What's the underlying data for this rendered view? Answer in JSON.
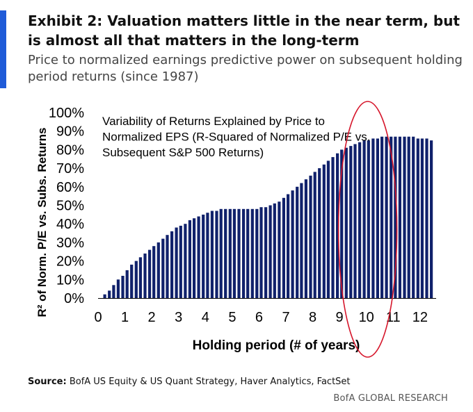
{
  "exhibit": {
    "title": "Exhibit 2: Valuation matters little in the near term, but is almost all that matters in the long-term",
    "subtitle": "Price to normalized earnings predictive power on subsequent holding period returns (since 1987)"
  },
  "source": {
    "label": "Source:",
    "text": " BofA US Equity & US Quant Strategy, Haver Analytics, FactSet"
  },
  "footer": "BofA GLOBAL RESEARCH",
  "colors": {
    "bar": "#10216b",
    "ellipse": "#d6162b",
    "accent": "#1f5bd8"
  },
  "chart_data": {
    "type": "bar",
    "title": "Variability of Returns Explained by Price to Normalized EPS (R-Squared of Normalized P/E vs. Subsequent S&P 500 Returns)",
    "title_lines": [
      "Variability of Returns Explained by Price to",
      "Normalized EPS (R-Squared of Normalized P/E vs.",
      "Subsequent S&P 500 Returns)"
    ],
    "xlabel": "Holding period (# of years)",
    "ylabel": "R² of Norm. P/E vs. Subs. Returns",
    "xlim": [
      0,
      12.6
    ],
    "ylim": [
      0,
      100
    ],
    "x_ticks": [
      "0",
      "1",
      "2",
      "3",
      "4",
      "5",
      "6",
      "7",
      "8",
      "9",
      "10",
      "11",
      "12"
    ],
    "y_ticks": [
      "0%",
      "10%",
      "20%",
      "30%",
      "40%",
      "50%",
      "60%",
      "70%",
      "80%",
      "90%",
      "100%"
    ],
    "grid": false,
    "annotation": "red ellipse highlighting the 10-year holding period",
    "x": [
      0.25,
      0.42,
      0.58,
      0.75,
      0.92,
      1.08,
      1.25,
      1.42,
      1.58,
      1.75,
      1.92,
      2.08,
      2.25,
      2.42,
      2.58,
      2.75,
      2.92,
      3.08,
      3.25,
      3.42,
      3.58,
      3.75,
      3.92,
      4.08,
      4.25,
      4.42,
      4.58,
      4.75,
      4.92,
      5.08,
      5.25,
      5.42,
      5.58,
      5.75,
      5.92,
      6.08,
      6.25,
      6.42,
      6.58,
      6.75,
      6.92,
      7.08,
      7.25,
      7.42,
      7.58,
      7.75,
      7.92,
      8.08,
      8.25,
      8.42,
      8.58,
      8.75,
      8.92,
      9.08,
      9.25,
      9.42,
      9.58,
      9.75,
      9.92,
      10.08,
      10.25,
      10.42,
      10.58,
      10.75,
      10.92,
      11.08,
      11.25,
      11.42,
      11.58,
      11.75,
      11.92,
      12.08,
      12.25,
      12.42
    ],
    "values": [
      2,
      4,
      7,
      10,
      12,
      15,
      18,
      20,
      22,
      24,
      26,
      28,
      30,
      32,
      34,
      36,
      38,
      39,
      40,
      42,
      43,
      44,
      45,
      46,
      47,
      47,
      48,
      48,
      48,
      48,
      48,
      48,
      48,
      48,
      48,
      49,
      49,
      50,
      51,
      52,
      54,
      56,
      58,
      60,
      62,
      64,
      66,
      68,
      70,
      72,
      74,
      76,
      78,
      80,
      81,
      82,
      83,
      84,
      85,
      85,
      86,
      86,
      87,
      87,
      87,
      87,
      87,
      87,
      87,
      87,
      86,
      86,
      86,
      85
    ]
  }
}
